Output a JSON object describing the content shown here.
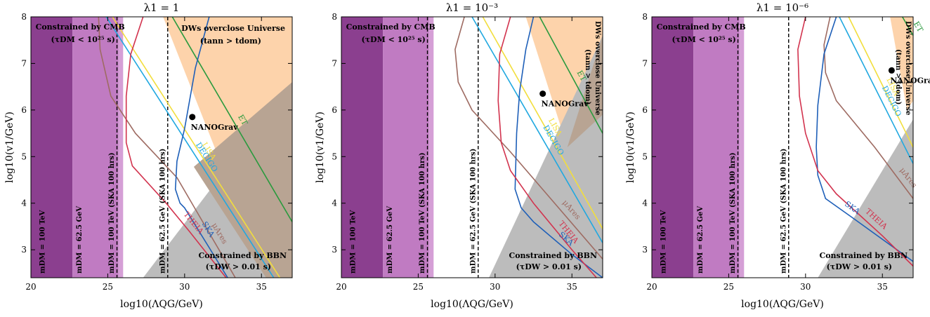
{
  "chart_data": [
    {
      "type": "line",
      "title": "λ1 = 1",
      "xlabel": "log10(ΛQG/GeV)",
      "ylabel": "log10(v1/GeV)",
      "xlim": [
        20,
        37
      ],
      "ylim": [
        2.4,
        8
      ],
      "xticks": [
        "20",
        "25",
        "30",
        "35"
      ],
      "yticks": [
        "3",
        "4",
        "5",
        "6",
        "7",
        "8"
      ],
      "regions": [
        {
          "name": "cmb_dark",
          "color": "#8b3f8f",
          "points": [
            [
              20,
              2.4
            ],
            [
              22.7,
              2.4
            ],
            [
              22.7,
              8
            ],
            [
              20,
              8
            ]
          ]
        },
        {
          "name": "cmb_light",
          "color": "#c07bc2",
          "points": [
            [
              22.7,
              2.4
            ],
            [
              25.7,
              2.4
            ],
            [
              25.7,
              8
            ],
            [
              22.7,
              8
            ]
          ]
        },
        {
          "name": "violet_strip",
          "color": "#d59fd6",
          "points": [
            [
              25.7,
              2.4
            ],
            [
              26.0,
              2.4
            ],
            [
              26.0,
              8
            ],
            [
              25.7,
              8
            ]
          ]
        },
        {
          "name": "orange_overclose",
          "color": "#fdd3ab",
          "points": [
            [
              28.6,
              8
            ],
            [
              37,
              8
            ],
            [
              37,
              2.4
            ],
            [
              35.3,
              2.4
            ]
          ]
        },
        {
          "name": "gray_bbn",
          "color": "#bcbcbc",
          "points": [
            [
              27.3,
              2.4
            ],
            [
              37,
              2.4
            ],
            [
              37,
              6.6
            ]
          ]
        },
        {
          "name": "overlap",
          "color": "#b8a493",
          "points": [
            [
              30.6,
              4.78
            ],
            [
              37,
              6.6
            ],
            [
              37,
              2.4
            ],
            [
              35.3,
              2.4
            ]
          ]
        }
      ],
      "vlines": [
        25.6,
        28.9
      ],
      "curves": [
        {
          "name": "ET",
          "color": "#2a9a3e",
          "points": [
            [
              29.2,
              8
            ],
            [
              37,
              3.6
            ]
          ]
        },
        {
          "name": "LISA",
          "color": "#f2de3c",
          "points": [
            [
              25.3,
              8
            ],
            [
              36.2,
              2.4
            ]
          ]
        },
        {
          "name": "DECIGO",
          "color": "#20a8e0",
          "points": [
            [
              24.9,
              8
            ],
            [
              35.8,
              2.4
            ]
          ]
        },
        {
          "name": "μAres",
          "color": "#9e6b62",
          "points": [
            [
              24.4,
              8
            ],
            [
              24.5,
              7.3
            ],
            [
              25.2,
              6.3
            ],
            [
              26.8,
              5.5
            ],
            [
              29.5,
              4.55
            ],
            [
              33.3,
              2.4
            ]
          ]
        },
        {
          "name": "SKA",
          "color": "#1e5fb8",
          "points": [
            [
              31.6,
              8
            ],
            [
              30.7,
              6.9
            ],
            [
              30.0,
              5.6
            ],
            [
              29.5,
              4.9
            ],
            [
              29.4,
              4.3
            ],
            [
              29.7,
              4.0
            ],
            [
              30.0,
              3.9
            ],
            [
              31.5,
              3.1
            ],
            [
              32.8,
              2.4
            ]
          ]
        },
        {
          "name": "THEIA",
          "color": "#d2334e",
          "points": [
            [
              27.3,
              8
            ],
            [
              26.5,
              7.2
            ],
            [
              26.2,
              6.3
            ],
            [
              26.2,
              5.3
            ],
            [
              26.6,
              4.8
            ],
            [
              28.8,
              4.0
            ],
            [
              30.3,
              3.4
            ],
            [
              32.7,
              2.4
            ]
          ]
        }
      ],
      "point": {
        "label": "NANOGrav",
        "x": 30.5,
        "y": 5.85
      },
      "labels": {
        "cmb_line1": "Constrained by CMB",
        "cmb_line2": "(τDM < 10²⁵ s)",
        "bbn_line1": "Constrained by BBN",
        "bbn_line2": "(τDW > 0.01 s)",
        "dw_line1": "DWs overclose Universe",
        "dw_line2": "(tann > tdom)",
        "m100": "mDM = 100 TeV",
        "m625": "mDM = 62.5 GeV",
        "m100ska": "mDM = 100 TeV (SKA 100 hrs)",
        "m625ska": "mDM = 62.5 GeV (SKA 100 hrs)"
      }
    },
    {
      "type": "line",
      "title": "λ1 = 10⁻³",
      "xlabel": "log10(ΛQG/GeV)",
      "ylabel": "log10(v1/GeV)",
      "xlim": [
        20,
        37
      ],
      "ylim": [
        2.4,
        8
      ],
      "xticks": [
        "20",
        "25",
        "30",
        "35"
      ],
      "yticks": [
        "3",
        "4",
        "5",
        "6",
        "7",
        "8"
      ],
      "regions": [
        {
          "name": "cmb_dark",
          "color": "#8b3f8f",
          "points": [
            [
              20,
              2.4
            ],
            [
              22.7,
              2.4
            ],
            [
              22.7,
              8
            ],
            [
              20,
              8
            ]
          ]
        },
        {
          "name": "cmb_light",
          "color": "#c07bc2",
          "points": [
            [
              22.7,
              2.4
            ],
            [
              25.7,
              2.4
            ],
            [
              25.7,
              8
            ],
            [
              22.7,
              8
            ]
          ]
        },
        {
          "name": "violet_strip",
          "color": "#d59fd6",
          "points": [
            [
              25.7,
              2.4
            ],
            [
              26.0,
              2.4
            ],
            [
              26.0,
              8
            ],
            [
              25.7,
              8
            ]
          ]
        },
        {
          "name": "orange_overclose",
          "color": "#fdd3ab",
          "points": [
            [
              32.0,
              8
            ],
            [
              37,
              8
            ],
            [
              37,
              5.9
            ],
            [
              34.7,
              5.2
            ]
          ]
        },
        {
          "name": "gray_bbn",
          "color": "#bcbcbc",
          "points": [
            [
              29.6,
              2.4
            ],
            [
              37,
              2.4
            ],
            [
              37,
              7.6
            ]
          ]
        },
        {
          "name": "overlap",
          "color": "#b8a493",
          "points": [
            [
              34.7,
              5.2
            ],
            [
              37,
              5.9
            ],
            [
              37,
              7.6
            ]
          ]
        }
      ],
      "vlines": [
        25.6,
        28.9
      ],
      "curves": [
        {
          "name": "ET",
          "color": "#2a9a3e",
          "points": [
            [
              32.9,
              8
            ],
            [
              37,
              5.5
            ]
          ]
        },
        {
          "name": "LISA",
          "color": "#f2de3c",
          "points": [
            [
              29.2,
              8
            ],
            [
              37,
              3.45
            ]
          ]
        },
        {
          "name": "DECIGO",
          "color": "#20a8e0",
          "points": [
            [
              28.5,
              8
            ],
            [
              37,
              3.15
            ]
          ]
        },
        {
          "name": "μAres",
          "color": "#9e6b62",
          "points": [
            [
              28.0,
              8
            ],
            [
              27.4,
              7.3
            ],
            [
              27.6,
              6.6
            ],
            [
              28.5,
              6.0
            ],
            [
              31.0,
              5.1
            ],
            [
              37,
              2.8
            ]
          ]
        },
        {
          "name": "SKA",
          "color": "#1e5fb8",
          "points": [
            [
              32.5,
              8
            ],
            [
              32.0,
              7.3
            ],
            [
              31.6,
              6.4
            ],
            [
              31.4,
              5.5
            ],
            [
              31.3,
              4.3
            ],
            [
              31.7,
              3.9
            ],
            [
              32.5,
              3.6
            ],
            [
              35.0,
              2.9
            ],
            [
              37,
              2.4
            ]
          ]
        },
        {
          "name": "THEIA",
          "color": "#d2334e",
          "points": [
            [
              31.0,
              8
            ],
            [
              30.3,
              7.2
            ],
            [
              30.2,
              6.2
            ],
            [
              30.4,
              5.3
            ],
            [
              31.0,
              4.7
            ],
            [
              32.5,
              4.0
            ],
            [
              35.0,
              3.0
            ],
            [
              36.6,
              2.4
            ]
          ]
        }
      ],
      "point": {
        "label": "NANOGrav",
        "x": 33.1,
        "y": 6.35
      },
      "labels": {
        "cmb_line1": "Constrained by CMB",
        "cmb_line2": "(τDM < 10²⁵ s)",
        "bbn_line1": "Constrained by BBN",
        "bbn_line2": "(τDW > 0.01 s)",
        "dw_line1": "DWs overclose Universe",
        "dw_line2": "(tann > tdom)",
        "m100": "mDM = 100 TeV",
        "m625": "mDM = 62.5 GeV",
        "m100ska": "mDM = 100 TeV (SKA 100 hrs)",
        "m625ska": "mDM = 62.5 GeV (SKA 100 hrs)"
      }
    },
    {
      "type": "line",
      "title": "λ1 = 10⁻⁶",
      "xlabel": "log10(ΛQG/GeV)",
      "ylabel": "log10(v1/GeV)",
      "xlim": [
        20,
        37
      ],
      "ylim": [
        2.4,
        8
      ],
      "xticks": [
        "20",
        "25",
        "30",
        "35"
      ],
      "yticks": [
        "3",
        "4",
        "5",
        "6",
        "7",
        "8"
      ],
      "regions": [
        {
          "name": "cmb_dark",
          "color": "#8b3f8f",
          "points": [
            [
              20,
              2.4
            ],
            [
              22.7,
              2.4
            ],
            [
              22.7,
              8
            ],
            [
              20,
              8
            ]
          ]
        },
        {
          "name": "cmb_light",
          "color": "#c07bc2",
          "points": [
            [
              22.7,
              2.4
            ],
            [
              25.7,
              2.4
            ],
            [
              25.7,
              8
            ],
            [
              22.7,
              8
            ]
          ]
        },
        {
          "name": "violet_strip",
          "color": "#d59fd6",
          "points": [
            [
              25.7,
              2.4
            ],
            [
              26.0,
              2.4
            ],
            [
              26.0,
              8
            ],
            [
              25.7,
              8
            ]
          ]
        },
        {
          "name": "orange_overclose",
          "color": "#fdd3ab",
          "points": [
            [
              35.5,
              8
            ],
            [
              37,
              8
            ],
            [
              37,
              6.2
            ],
            [
              36.6,
              6.0
            ]
          ]
        },
        {
          "name": "gray_bbn",
          "color": "#bcbcbc",
          "points": [
            [
              30.8,
              2.4
            ],
            [
              37,
              2.4
            ],
            [
              37,
              5.8
            ]
          ]
        }
      ],
      "vlines": [
        25.6,
        28.9
      ],
      "curves": [
        {
          "name": "ET",
          "color": "#2a9a3e",
          "points": [
            [
              36.3,
              8
            ],
            [
              37,
              7.6
            ]
          ]
        },
        {
          "name": "LISA",
          "color": "#f2de3c",
          "points": [
            [
              32.8,
              8
            ],
            [
              37,
              5.2
            ]
          ]
        },
        {
          "name": "DECIGO",
          "color": "#20a8e0",
          "points": [
            [
              32.2,
              8
            ],
            [
              37,
              4.85
            ]
          ]
        },
        {
          "name": "μAres",
          "color": "#9e6b62",
          "points": [
            [
              31.6,
              8
            ],
            [
              31.2,
              7.4
            ],
            [
              31.3,
              6.8
            ],
            [
              32.0,
              6.2
            ],
            [
              34.5,
              5.2
            ],
            [
              37,
              4.1
            ]
          ]
        },
        {
          "name": "SKA",
          "color": "#1e5fb8",
          "points": [
            [
              32.0,
              8
            ],
            [
              31.2,
              7.2
            ],
            [
              30.8,
              6.1
            ],
            [
              30.7,
              5.2
            ],
            [
              30.8,
              4.6
            ],
            [
              31.3,
              4.1
            ],
            [
              33.0,
              3.7
            ],
            [
              37,
              2.75
            ]
          ]
        },
        {
          "name": "THEIA",
          "color": "#d2334e",
          "points": [
            [
              30.0,
              8
            ],
            [
              29.5,
              7.3
            ],
            [
              29.6,
              6.3
            ],
            [
              30.0,
              5.5
            ],
            [
              30.8,
              4.7
            ],
            [
              32.0,
              4.2
            ],
            [
              35.0,
              3.3
            ],
            [
              37,
              2.65
            ]
          ]
        }
      ],
      "point": {
        "label": "NANOGrav",
        "x": 35.6,
        "y": 6.85
      },
      "labels": {
        "cmb_line1": "Constrained by CMB",
        "cmb_line2": "(τDM < 10²⁵ s)",
        "bbn_line1": "Constrained by BBN",
        "bbn_line2": "(τDW > 0.01 s)",
        "dw_line1": "DWs overclose Universe",
        "dw_line2": "(tann > tdom)",
        "m100": "mDM = 100 TeV",
        "m625": "mDM = 62.5 GeV",
        "m100ska": "mDM = 100 TeV (SKA 100 hrs)",
        "m625ska": "mDM = 62.5 GeV (SKA 100 hrs)"
      }
    }
  ]
}
